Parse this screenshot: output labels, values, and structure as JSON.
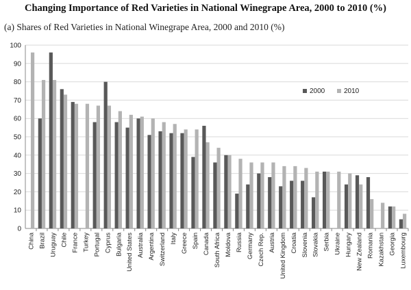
{
  "title": "Changing Importance of Red Varieties in National Winegrape Area, 2000 to 2010 (%)",
  "subtitle": "(a)  Shares of Red Varieties in National Winegrape Area, 2000 and 2010 (%)",
  "colors": {
    "s2000": "#595959",
    "s2010": "#b3b3b3",
    "grid": "#d9d9d9",
    "axis": "#888888"
  },
  "chart_data": {
    "type": "bar",
    "ylim": [
      0,
      100
    ],
    "yticks": [
      0,
      10,
      20,
      30,
      40,
      50,
      60,
      70,
      80,
      90,
      100
    ],
    "grid": true,
    "legend_position": "right",
    "categories": [
      "China",
      "Brazil",
      "Uruguay",
      "Chile",
      "France",
      "Turkey",
      "Portugal",
      "Cyprus",
      "Bulgaria",
      "United States",
      "Australia",
      "Argentina",
      "Switzerland",
      "Italy",
      "Greece",
      "Spain",
      "Canada",
      "South Africa",
      "Moldova",
      "Russia",
      "Germany",
      "Czech Rep.",
      "Austria",
      "United Kingdom",
      "Croatia",
      "Slovenia",
      "Slovakia",
      "Serbia",
      "Ukraine",
      "Hungary",
      "New Zealand",
      "Romania",
      "Kazakhstan",
      "Georgia",
      "Luxembourg"
    ],
    "series": [
      {
        "name": "2000",
        "values": [
          null,
          60,
          96,
          76,
          69,
          null,
          58,
          80,
          58,
          55,
          60,
          51,
          53,
          52,
          52,
          39,
          56,
          36,
          40,
          19,
          24,
          30,
          28,
          23,
          26,
          26,
          17,
          31,
          null,
          24,
          29,
          28,
          null,
          12,
          5
        ]
      },
      {
        "name": "2010",
        "values": [
          96,
          81,
          81,
          73,
          68,
          68,
          67,
          67,
          64,
          62,
          61,
          60,
          58,
          57,
          54,
          54,
          47,
          44,
          40,
          38,
          36,
          36,
          36,
          34,
          34,
          33,
          31,
          31,
          31,
          30,
          24,
          16,
          14,
          12,
          8
        ]
      }
    ]
  }
}
